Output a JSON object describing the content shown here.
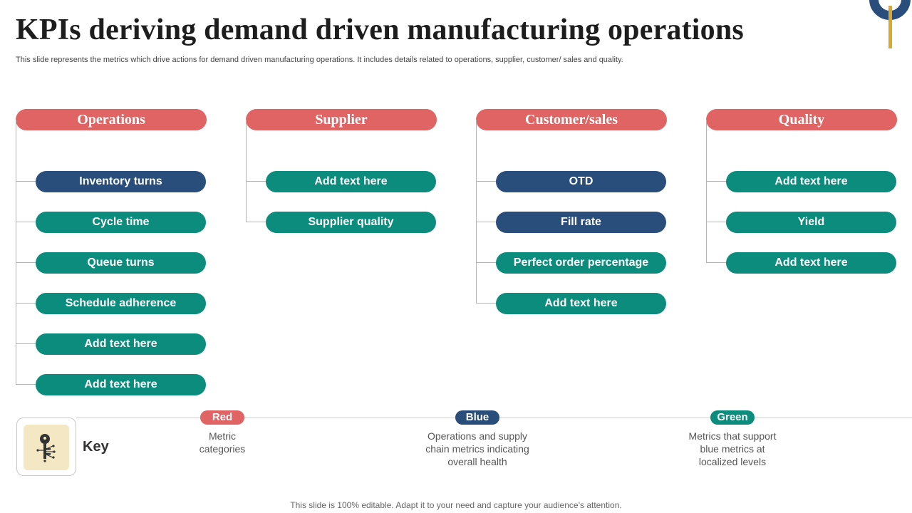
{
  "title": "KPIs deriving demand driven manufacturing operations",
  "subtitle": "This slide represents the metrics which drive actions for demand driven manufacturing operations. It includes details related to operations, supplier, customer/ sales and quality.",
  "colors": {
    "red": "#e06464",
    "blue": "#2a4e7c",
    "green": "#0b8c7d",
    "gold": "#d8a72b"
  },
  "columns": [
    {
      "header": "Operations",
      "items": [
        {
          "label": "Inventory turns",
          "color": "blue"
        },
        {
          "label": "Cycle time",
          "color": "green"
        },
        {
          "label": "Queue turns",
          "color": "green"
        },
        {
          "label": "Schedule adherence",
          "color": "green"
        },
        {
          "label": "Add text here",
          "color": "green"
        },
        {
          "label": "Add text here",
          "color": "green"
        }
      ]
    },
    {
      "header": "Supplier",
      "items": [
        {
          "label": "Add text here",
          "color": "green"
        },
        {
          "label": "Supplier quality",
          "color": "green"
        }
      ]
    },
    {
      "header": "Customer/sales",
      "items": [
        {
          "label": "OTD",
          "color": "blue"
        },
        {
          "label": "Fill rate",
          "color": "blue"
        },
        {
          "label": "Perfect order percentage",
          "color": "green"
        },
        {
          "label": "Add text here",
          "color": "green"
        }
      ]
    },
    {
      "header": "Quality",
      "items": [
        {
          "label": "Add text here",
          "color": "green"
        },
        {
          "label": "Yield",
          "color": "green"
        },
        {
          "label": "Add text here",
          "color": "green"
        }
      ]
    }
  ],
  "key": {
    "label": "Key",
    "icon": "key-icon",
    "legend": [
      {
        "name": "Red",
        "color": "red",
        "description": "Metric categories"
      },
      {
        "name": "Blue",
        "color": "blue",
        "description": "Operations and supply chain metrics indicating overall health"
      },
      {
        "name": "Green",
        "color": "green",
        "description": "Metrics that support blue metrics at localized levels"
      }
    ]
  },
  "footer": "This slide is 100% editable. Adapt it to your need and capture your audience’s attention."
}
